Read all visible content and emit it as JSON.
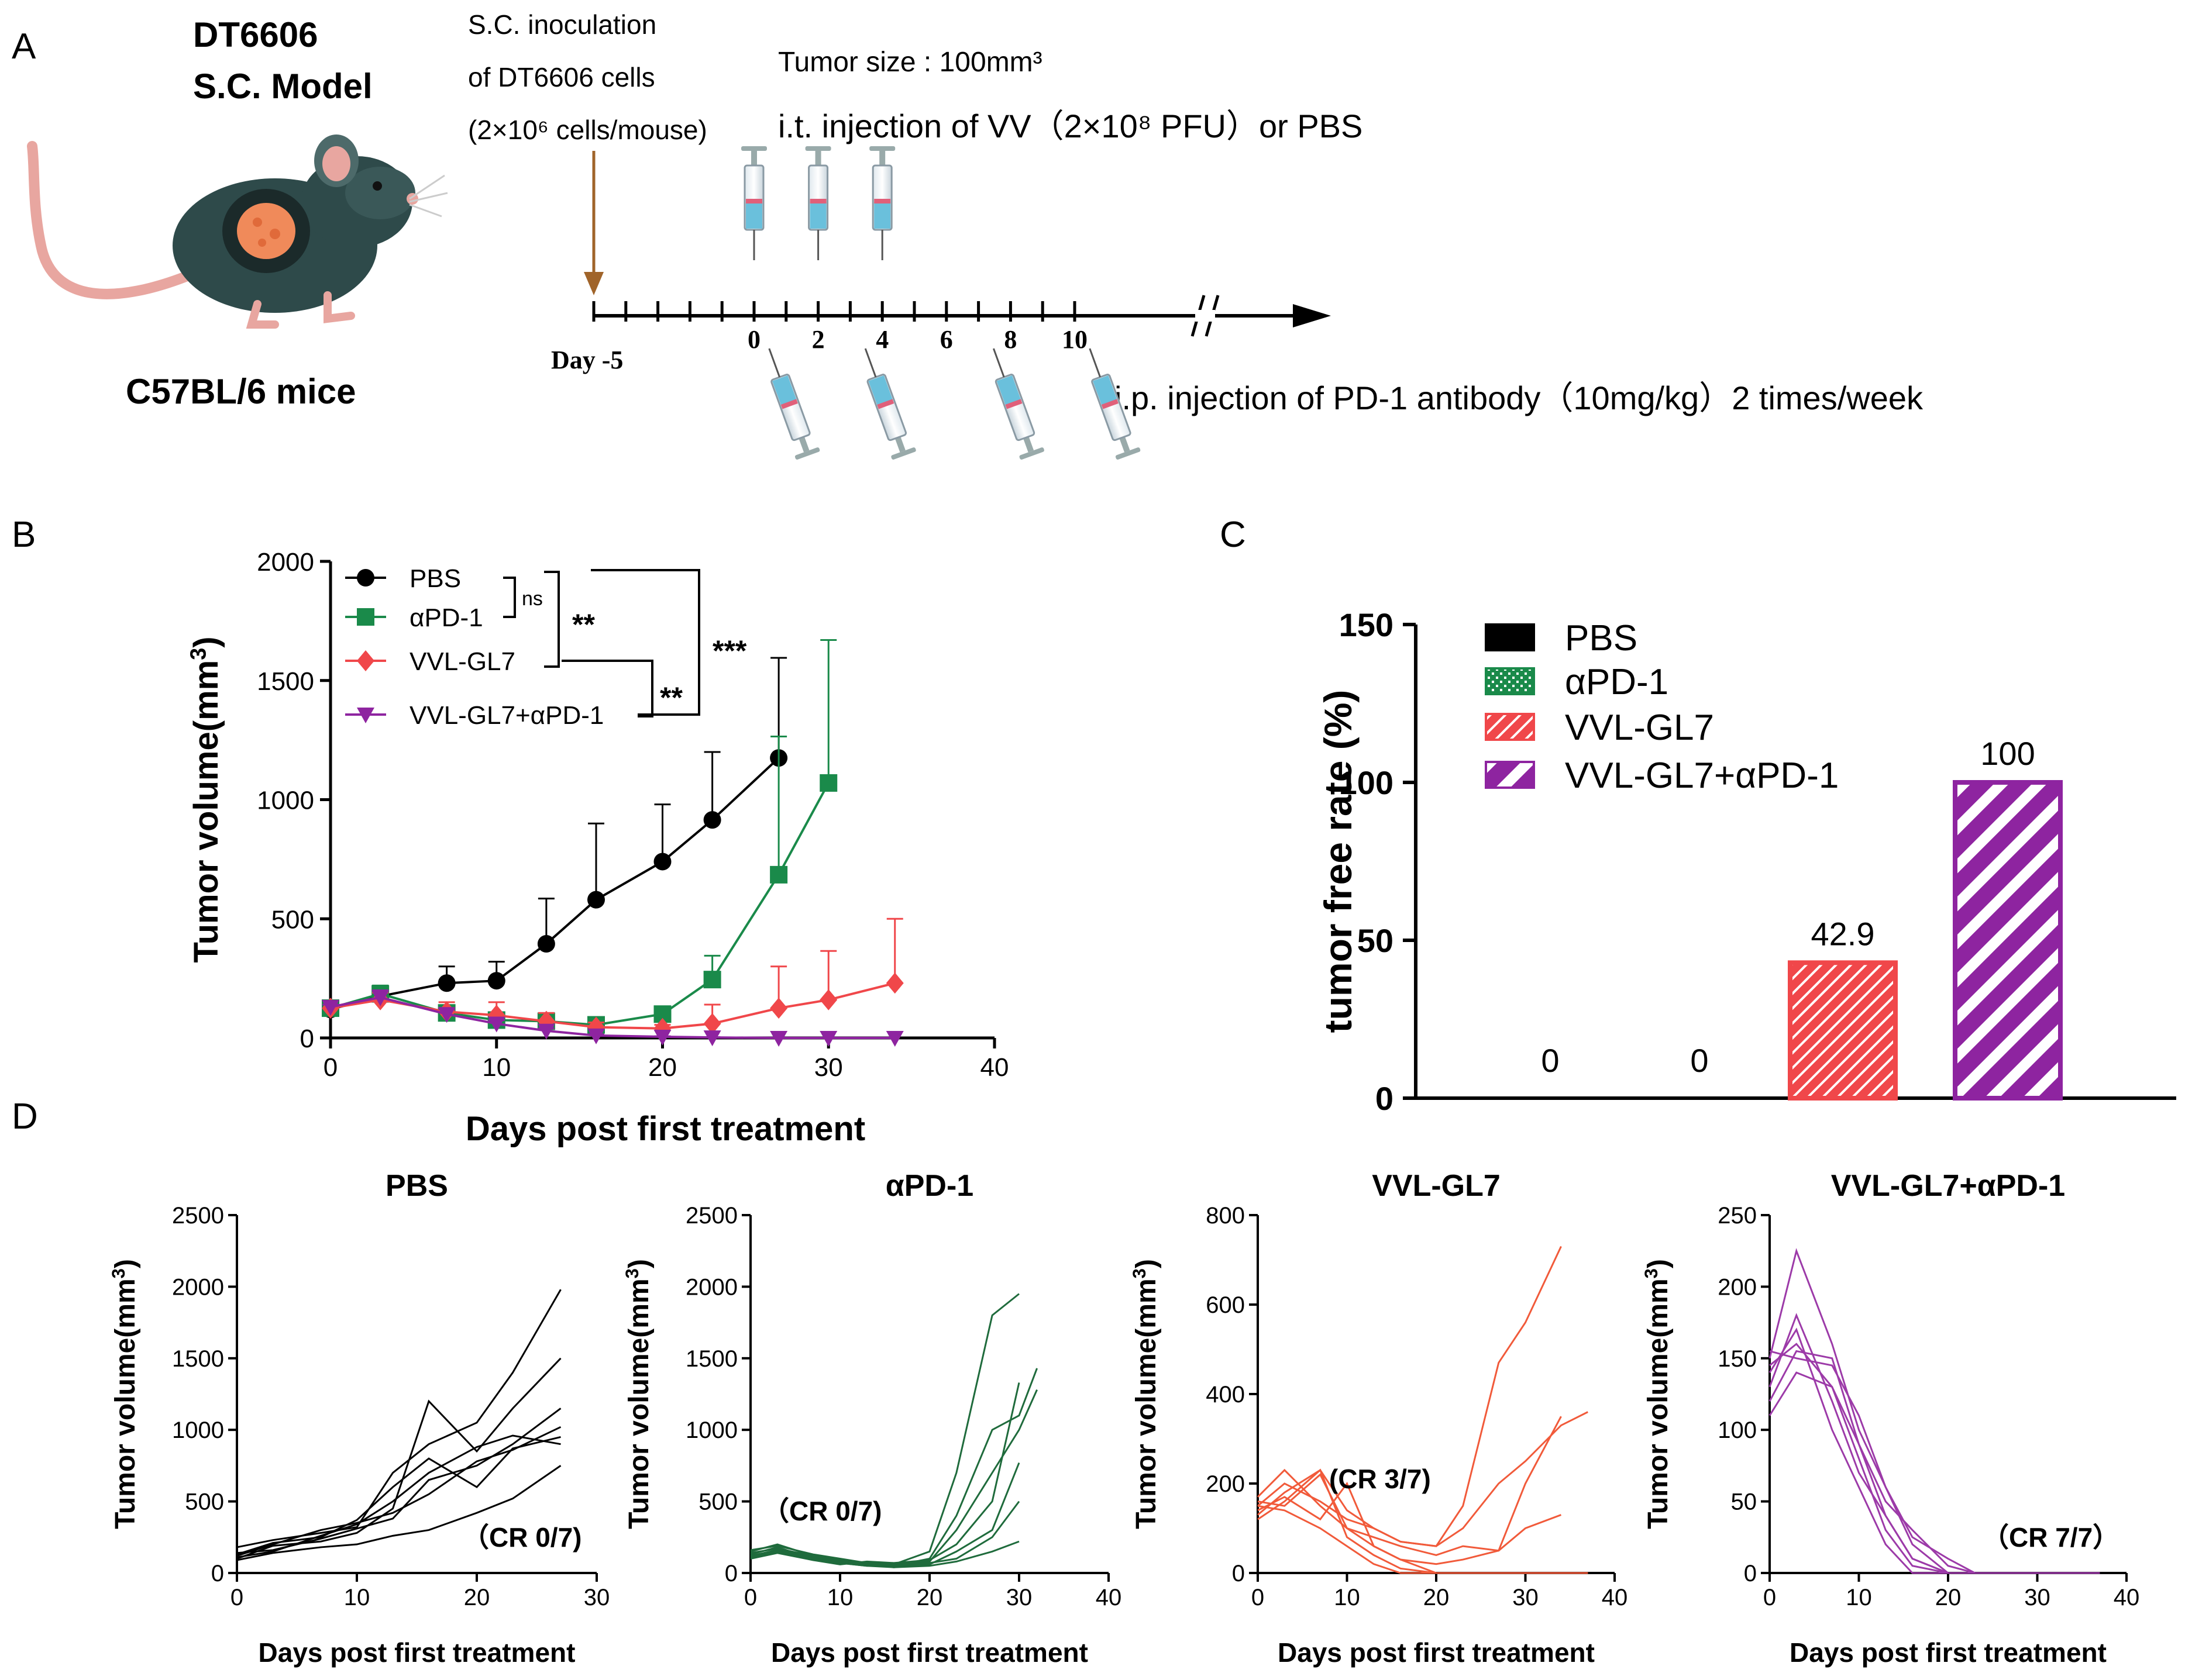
{
  "colors": {
    "pbs": "#000000",
    "apd1": "#1a8a4a",
    "vvl": "#f0474a",
    "combo": "#8e24a0",
    "arrow": "#a0642a",
    "d_apd1": "#1f6b3c",
    "d_vvl": "#f15a3a",
    "d_combo": "#9c3aa8",
    "mouse_body": "#2e4a4a",
    "tumor": "#f08a5a"
  },
  "panelA": {
    "label": "A",
    "model_line1": "DT6606",
    "model_line2": "S.C. Model",
    "mouse_label": "C57BL/6 mice",
    "inoc1": "S.C. inoculation",
    "inoc2": "of DT6606 cells",
    "inoc3": "(2×10⁶ cells/mouse)",
    "tumor_size": "Tumor size : 100mm³",
    "it_injection": "i.t. injection of  VV（2×10⁸ PFU）or PBS",
    "ip_injection": "i.p. injection of  PD-1 antibody（10mg/kg）2 times/week",
    "day_start": "Day -5",
    "day_ticks": [
      "0",
      "2",
      "4",
      "6",
      "8",
      "10"
    ],
    "vv_injection_days": [
      0,
      2,
      4
    ],
    "pd1_injection_days": [
      0,
      3,
      7,
      10
    ]
  },
  "panelB": {
    "label": "B"
  },
  "panelC": {
    "label": "C"
  },
  "panelD": {
    "label": "D"
  },
  "chart_data": [
    {
      "id": "B",
      "type": "line",
      "xlabel": "Days post first treatment",
      "ylabel": "Tumor volume(mm³)",
      "xlim": [
        0,
        40
      ],
      "ylim": [
        0,
        2000
      ],
      "xticks": [
        0,
        10,
        20,
        30,
        40
      ],
      "yticks": [
        0,
        500,
        1000,
        1500,
        2000
      ],
      "series": [
        {
          "name": "PBS",
          "color": "#000000",
          "marker": "circle",
          "x": [
            0,
            3,
            7,
            10,
            13,
            16,
            20,
            23,
            27
          ],
          "y": [
            120,
            175,
            230,
            240,
            395,
            580,
            740,
            915,
            1175
          ],
          "err": [
            15,
            40,
            70,
            80,
            190,
            320,
            240,
            285,
            420
          ]
        },
        {
          "name": "αPD-1",
          "color": "#1a8a4a",
          "marker": "square",
          "x": [
            0,
            3,
            7,
            10,
            13,
            16,
            20,
            23,
            27,
            30
          ],
          "y": [
            125,
            185,
            105,
            75,
            70,
            55,
            100,
            245,
            685,
            1070
          ],
          "err": [
            15,
            35,
            25,
            20,
            20,
            15,
            25,
            100,
            580,
            600
          ]
        },
        {
          "name": "VVL-GL7",
          "color": "#f0474a",
          "marker": "diamond",
          "x": [
            0,
            3,
            7,
            10,
            13,
            16,
            20,
            23,
            27,
            30,
            34
          ],
          "y": [
            125,
            160,
            110,
            95,
            70,
            45,
            40,
            60,
            125,
            160,
            230
          ],
          "err": [
            15,
            30,
            40,
            55,
            35,
            20,
            15,
            80,
            175,
            205,
            270
          ]
        },
        {
          "name": "VVL-GL7+αPD-1",
          "color": "#8e24a0",
          "marker": "triangle-down",
          "x": [
            0,
            3,
            7,
            10,
            13,
            16,
            20,
            23,
            27,
            30,
            34
          ],
          "y": [
            130,
            170,
            100,
            60,
            30,
            10,
            5,
            2,
            0,
            0,
            0
          ],
          "err": [
            10,
            30,
            20,
            15,
            10,
            5,
            2,
            1,
            0,
            0,
            0
          ]
        }
      ],
      "significance": [
        "ns",
        "**",
        "***",
        "**"
      ]
    },
    {
      "id": "C",
      "type": "bar",
      "ylabel": "tumor free rate (%)",
      "ylim": [
        0,
        150
      ],
      "yticks": [
        0,
        50,
        100,
        150
      ],
      "categories": [
        "PBS",
        "αPD-1",
        "VVL-GL7",
        "VVL-GL7+αPD-1"
      ],
      "values": [
        0,
        0,
        42.9,
        100
      ],
      "value_labels": [
        "0",
        "0",
        "42.9",
        "100"
      ],
      "colors": [
        "#000000",
        "#1a8a4a",
        "#f0474a",
        "#8e24a0"
      ]
    },
    {
      "id": "D1",
      "type": "line",
      "title": "PBS",
      "color": "#000000",
      "xlabel": "Days post first treatment",
      "ylabel": "Tumor volume(mm³)",
      "xlim": [
        0,
        30
      ],
      "ylim": [
        0,
        2500
      ],
      "xticks": [
        0,
        10,
        20,
        30
      ],
      "yticks": [
        0,
        500,
        1000,
        1500,
        2000,
        2500
      ],
      "annotation": "（CR 0/7)",
      "lines": [
        {
          "x": [
            0,
            3,
            7,
            10,
            13,
            16,
            20,
            23,
            27
          ],
          "y": [
            180,
            230,
            280,
            320,
            700,
            900,
            1050,
            1400,
            1980
          ]
        },
        {
          "x": [
            0,
            3,
            7,
            10,
            13,
            16,
            20,
            23,
            27
          ],
          "y": [
            100,
            190,
            220,
            280,
            450,
            1200,
            850,
            1150,
            1500
          ]
        },
        {
          "x": [
            0,
            3,
            7,
            10,
            13,
            16,
            20,
            23,
            27
          ],
          "y": [
            140,
            160,
            240,
            310,
            380,
            650,
            750,
            900,
            1150
          ]
        },
        {
          "x": [
            0,
            3,
            7,
            10,
            13,
            16,
            20,
            23,
            27
          ],
          "y": [
            120,
            200,
            300,
            350,
            420,
            550,
            780,
            860,
            1020
          ]
        },
        {
          "x": [
            0,
            3,
            7,
            10,
            13,
            16,
            20,
            23,
            27
          ],
          "y": [
            110,
            150,
            260,
            340,
            500,
            700,
            880,
            960,
            900
          ]
        },
        {
          "x": [
            0,
            3,
            7,
            10,
            13,
            16,
            20,
            23,
            27
          ],
          "y": [
            90,
            140,
            180,
            200,
            260,
            300,
            420,
            520,
            750
          ]
        },
        {
          "x": [
            0,
            3,
            7,
            10,
            13,
            16,
            20,
            23,
            27
          ],
          "y": [
            130,
            210,
            250,
            370,
            600,
            800,
            600,
            870,
            950
          ]
        }
      ]
    },
    {
      "id": "D2",
      "type": "line",
      "title": "αPD-1",
      "color": "#1f6b3c",
      "xlabel": "Days post first treatment",
      "ylabel": "Tumor volume(mm³)",
      "xlim": [
        0,
        40
      ],
      "ylim": [
        0,
        2500
      ],
      "xticks": [
        0,
        10,
        20,
        30,
        40
      ],
      "yticks": [
        0,
        500,
        1000,
        1500,
        2000,
        2500
      ],
      "annotation": "（CR 0/7)",
      "lines": [
        {
          "x": [
            0,
            3,
            7,
            10,
            13,
            16,
            20,
            23,
            27,
            30
          ],
          "y": [
            150,
            200,
            120,
            90,
            70,
            60,
            150,
            700,
            1800,
            1950
          ]
        },
        {
          "x": [
            0,
            3,
            7,
            10,
            13,
            16,
            20,
            23,
            27,
            30,
            32
          ],
          "y": [
            130,
            180,
            100,
            80,
            60,
            50,
            100,
            400,
            1000,
            1100,
            1430
          ]
        },
        {
          "x": [
            0,
            3,
            7,
            10,
            13,
            16,
            20,
            23,
            27,
            30,
            32
          ],
          "y": [
            120,
            160,
            110,
            70,
            50,
            60,
            80,
            300,
            700,
            1000,
            1280
          ]
        },
        {
          "x": [
            0,
            3,
            7,
            10,
            13,
            16,
            20,
            23,
            27,
            30
          ],
          "y": [
            100,
            140,
            90,
            60,
            80,
            70,
            90,
            200,
            500,
            1330
          ]
        },
        {
          "x": [
            0,
            3,
            7,
            10,
            13,
            16,
            20,
            23,
            27,
            30
          ],
          "y": [
            140,
            170,
            120,
            80,
            60,
            40,
            60,
            150,
            300,
            770
          ]
        },
        {
          "x": [
            0,
            3,
            7,
            10,
            13,
            16,
            20,
            23,
            27,
            30
          ],
          "y": [
            160,
            190,
            130,
            100,
            70,
            50,
            70,
            100,
            250,
            500
          ]
        },
        {
          "x": [
            0,
            3,
            7,
            10,
            13,
            16,
            20,
            23,
            27,
            30
          ],
          "y": [
            110,
            150,
            100,
            70,
            50,
            40,
            50,
            80,
            150,
            220
          ]
        }
      ]
    },
    {
      "id": "D3",
      "type": "line",
      "title": "VVL-GL7",
      "color": "#f15a3a",
      "xlabel": "Days post first treatment",
      "ylabel": "Tumor volume(mm³)",
      "xlim": [
        0,
        40
      ],
      "ylim": [
        0,
        800
      ],
      "xticks": [
        0,
        10,
        20,
        30,
        40
      ],
      "yticks": [
        0,
        200,
        400,
        600,
        800
      ],
      "annotation": "(CR 3/7)",
      "lines": [
        {
          "x": [
            0,
            3,
            7,
            10,
            13,
            16,
            20,
            23,
            27,
            30,
            34
          ],
          "y": [
            150,
            200,
            160,
            120,
            100,
            70,
            60,
            150,
            470,
            560,
            730
          ]
        },
        {
          "x": [
            0,
            3,
            7,
            10,
            13,
            16,
            20,
            23,
            27,
            30,
            34,
            37
          ],
          "y": [
            130,
            180,
            230,
            140,
            100,
            70,
            60,
            100,
            200,
            250,
            330,
            360
          ]
        },
        {
          "x": [
            0,
            3,
            7,
            10,
            13,
            16,
            20,
            23,
            27,
            30,
            34
          ],
          "y": [
            160,
            150,
            220,
            100,
            80,
            60,
            40,
            60,
            50,
            100,
            130
          ]
        },
        {
          "x": [
            0,
            3,
            7,
            10,
            13,
            16,
            20,
            23,
            27,
            30,
            34
          ],
          "y": [
            140,
            170,
            120,
            200,
            60,
            30,
            20,
            30,
            50,
            200,
            350
          ]
        },
        {
          "x": [
            0,
            3,
            7,
            10,
            13,
            16,
            20,
            23,
            27,
            30,
            34,
            37
          ],
          "y": [
            170,
            230,
            150,
            100,
            60,
            30,
            0,
            0,
            0,
            0,
            0,
            0
          ]
        },
        {
          "x": [
            0,
            3,
            7,
            10,
            13,
            16,
            20,
            23,
            27,
            30,
            34,
            37
          ],
          "y": [
            120,
            160,
            230,
            80,
            40,
            10,
            0,
            0,
            0,
            0,
            0,
            0
          ]
        },
        {
          "x": [
            0,
            3,
            7,
            10,
            13,
            16,
            20,
            23,
            27,
            30,
            34,
            37
          ],
          "y": [
            150,
            140,
            100,
            60,
            20,
            0,
            0,
            0,
            0,
            0,
            0,
            0
          ]
        }
      ]
    },
    {
      "id": "D4",
      "type": "line",
      "title": "VVL-GL7+αPD-1",
      "color": "#9c3aa8",
      "xlabel": "Days post first treatment",
      "ylabel": "Tumor volume(mm³)",
      "xlim": [
        0,
        40
      ],
      "ylim": [
        0,
        250
      ],
      "xticks": [
        0,
        10,
        20,
        30,
        40
      ],
      "yticks": [
        0,
        50,
        100,
        150,
        200,
        250
      ],
      "annotation": "（CR 7/7）",
      "lines": [
        {
          "x": [
            0,
            3,
            7,
            10,
            13,
            16,
            20,
            23,
            27,
            30,
            34,
            37
          ],
          "y": [
            150,
            225,
            160,
            100,
            60,
            20,
            0,
            0,
            0,
            0,
            0,
            0
          ]
        },
        {
          "x": [
            0,
            3,
            7,
            10,
            13,
            16,
            20,
            23,
            27,
            30,
            34,
            37
          ],
          "y": [
            130,
            180,
            120,
            70,
            40,
            10,
            0,
            0,
            0,
            0,
            0,
            0
          ]
        },
        {
          "x": [
            0,
            3,
            7,
            10,
            13,
            16,
            20,
            23,
            27,
            30,
            34,
            37
          ],
          "y": [
            120,
            155,
            150,
            90,
            50,
            30,
            5,
            0,
            0,
            0,
            0,
            0
          ]
        },
        {
          "x": [
            0,
            3,
            7,
            10,
            13,
            16,
            20,
            23,
            27,
            30,
            34,
            37
          ],
          "y": [
            110,
            140,
            130,
            80,
            30,
            5,
            0,
            0,
            0,
            0,
            0,
            0
          ]
        },
        {
          "x": [
            0,
            3,
            7,
            10,
            13,
            16,
            20,
            23,
            27,
            30,
            34,
            37
          ],
          "y": [
            140,
            170,
            100,
            60,
            20,
            0,
            0,
            0,
            0,
            0,
            0,
            0
          ]
        },
        {
          "x": [
            0,
            3,
            7,
            10,
            13,
            16,
            20,
            23,
            27,
            30,
            34,
            37
          ],
          "y": [
            155,
            150,
            145,
            110,
            60,
            25,
            10,
            0,
            0,
            0,
            0,
            0
          ]
        },
        {
          "x": [
            0,
            3,
            7,
            10,
            13,
            16,
            20,
            23,
            27,
            30,
            34,
            37
          ],
          "y": [
            145,
            160,
            130,
            90,
            40,
            10,
            0,
            0,
            0,
            0,
            0,
            0
          ]
        }
      ]
    }
  ]
}
